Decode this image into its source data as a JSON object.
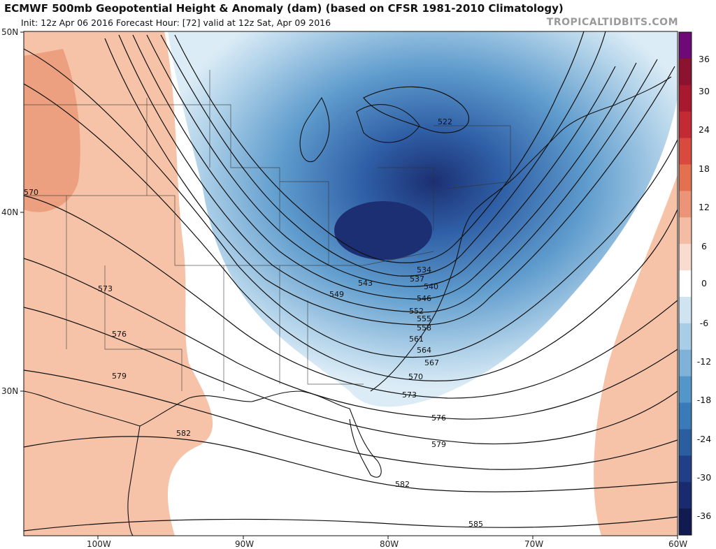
{
  "title": "ECMWF 500mb Geopotential Height & Anomaly (dam) (based on CFSR 1981-2010 Climatology)",
  "subtitle": "Init: 12z Apr 06 2016   Forecast Hour: [72]   valid at 12z Sat, Apr 09 2016",
  "brand": "TROPICALTIDBITS.COM",
  "latitude_labels": [
    "50N",
    "40N",
    "30N"
  ],
  "longitude_labels": [
    "100W",
    "90W",
    "80W",
    "70W",
    "60W"
  ],
  "colorbar": {
    "labels": [
      "36",
      "30",
      "24",
      "18",
      "12",
      "6",
      "0",
      "-6",
      "-12",
      "-18",
      "-24",
      "-30",
      "-36"
    ],
    "colors": [
      "#6e0a78",
      "#8c1230",
      "#a8182e",
      "#c42a34",
      "#d84a3e",
      "#e3704f",
      "#eb9477",
      "#f3bca3",
      "#f8dccf",
      "#ffffff",
      "#cfe3f0",
      "#a9cde6",
      "#7fb2d9",
      "#5596c9",
      "#3a7ab8",
      "#2a5e9e",
      "#203f86",
      "#1a2a6e",
      "#121a52"
    ]
  },
  "contour_labels": [
    {
      "value": "522"
    },
    {
      "value": "534"
    },
    {
      "value": "537"
    },
    {
      "value": "540"
    },
    {
      "value": "543"
    },
    {
      "value": "546"
    },
    {
      "value": "549"
    },
    {
      "value": "552"
    },
    {
      "value": "555"
    },
    {
      "value": "558"
    },
    {
      "value": "561"
    },
    {
      "value": "564"
    },
    {
      "value": "567"
    },
    {
      "value": "570"
    },
    {
      "value": "570"
    },
    {
      "value": "573"
    },
    {
      "value": "573"
    },
    {
      "value": "576"
    },
    {
      "value": "576"
    },
    {
      "value": "579"
    },
    {
      "value": "579"
    },
    {
      "value": "582"
    },
    {
      "value": "582"
    },
    {
      "value": "585"
    }
  ],
  "colors": {
    "warm_anomaly": "#f6c3a8",
    "warm_anomaly_strong": "#eda07f",
    "cold_light": "#b4d4ea",
    "cold_mid": "#5f9ccd",
    "cold_deep": "#2f5fa6",
    "cold_core": "#1c2f72",
    "contour": "#111111"
  }
}
